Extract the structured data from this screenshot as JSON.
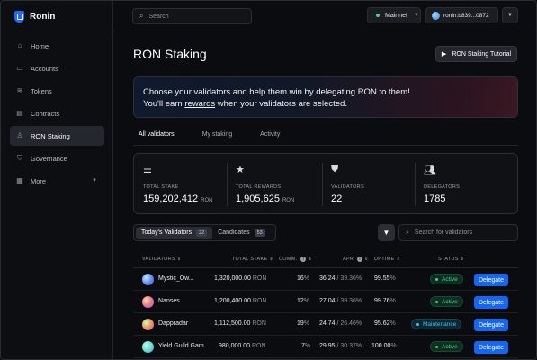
{
  "app": {
    "name": "Ronin"
  },
  "sidebar": {
    "items": [
      {
        "label": "Home",
        "icon": "home-icon"
      },
      {
        "label": "Accounts",
        "icon": "accounts-icon"
      },
      {
        "label": "Tokens",
        "icon": "tokens-icon"
      },
      {
        "label": "Contracts",
        "icon": "contracts-icon"
      },
      {
        "label": "RON Staking",
        "icon": "staking-icon",
        "active": true
      },
      {
        "label": "Governance",
        "icon": "governance-icon"
      },
      {
        "label": "More",
        "icon": "more-icon"
      }
    ]
  },
  "topbar": {
    "search_placeholder": "Search",
    "network": "Mainnet",
    "address": "ronin:b839...0872"
  },
  "page": {
    "title": "RON Staking",
    "tutorial_label": "RON Staking Tutorial",
    "banner_line1": "Choose your validators and help them win by delegating RON to them!",
    "banner_line2_pre": "You'll earn ",
    "banner_link": "rewards",
    "banner_line2_post": " when your validators are selected."
  },
  "tabs": [
    "All validators",
    "My staking",
    "Activity"
  ],
  "stats": [
    {
      "label": "TOTAL STAKE",
      "value": "159,202,412",
      "unit": "RON",
      "icon": "coins-stack-icon"
    },
    {
      "label": "TOTAL REWARDS",
      "value": "1,905,625",
      "unit": "RON",
      "icon": "star-icon"
    },
    {
      "label": "VALIDATORS",
      "value": "22",
      "unit": "",
      "icon": "shield-icon"
    },
    {
      "label": "DELEGATORS",
      "value": "1785",
      "unit": "",
      "icon": "users-icon"
    }
  ],
  "segment": {
    "today_label": "Today's Validators",
    "today_count": "22",
    "candidates_label": "Candidates",
    "candidates_count": "53"
  },
  "validator_search_placeholder": "Search for validators",
  "table": {
    "headers": {
      "validators": "VALIDATORS",
      "total_stake": "TOTAL STAKE",
      "comm": "COMM.",
      "apr": "APR",
      "uptime": "UPTIME",
      "status": "STATUS"
    },
    "rows": [
      {
        "name": "Mystic_Ow...",
        "stake": "1,320,000.00",
        "unit": "RON",
        "comm": "16",
        "apr_a": "36.24",
        "apr_b": "39.36",
        "uptime": "99.55",
        "status": "Active",
        "status_kind": "active",
        "action": "Delegate"
      },
      {
        "name": "Nanses",
        "stake": "1,200,400.00",
        "unit": "RON",
        "comm": "12",
        "apr_a": "27.04",
        "apr_b": "39.36",
        "uptime": "99.76",
        "status": "Active",
        "status_kind": "active",
        "action": "Delegate"
      },
      {
        "name": "Dappradar",
        "stake": "1,112,500.00",
        "unit": "RON",
        "comm": "19",
        "apr_a": "24.74",
        "apr_b": "26.46",
        "uptime": "95.62",
        "status": "Maintenance",
        "status_kind": "maintenance",
        "action": "Delegate"
      },
      {
        "name": "Yield Guild Gam...",
        "stake": "980,000.00",
        "unit": "RON",
        "comm": "7",
        "apr_a": "29.95",
        "apr_b": "30.37",
        "uptime": "100.00",
        "status": "Active",
        "status_kind": "active",
        "action": "Delegate"
      }
    ]
  },
  "colors": {
    "accent": "#1566f5",
    "active_green": "#3fd68b",
    "maintenance_cyan": "#3fc2e6"
  }
}
